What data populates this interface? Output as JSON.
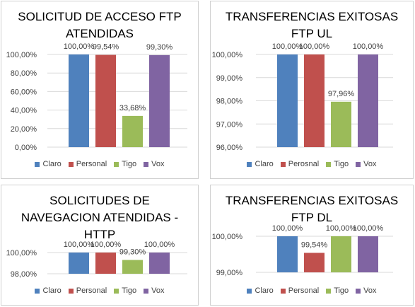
{
  "chart_data": [
    {
      "type": "bar",
      "title": "SOLICITUD DE ACCESO FTP\nATENDIDAS",
      "categories": [
        "Claro",
        "Personal",
        "Tigo",
        "Vox"
      ],
      "values": [
        100.0,
        99.54,
        33.68,
        99.3
      ],
      "value_labels": [
        "100,00%",
        "99,54%",
        "33,68%",
        "99,30%"
      ],
      "ylim": [
        0,
        100
      ],
      "yticks": [
        "0,00%",
        "20,00%",
        "40,00%",
        "60,00%",
        "80,00%",
        "100,00%"
      ],
      "colors": [
        "#4f81bd",
        "#c0504d",
        "#9bbb59",
        "#8064a2"
      ],
      "grid": true,
      "legend_position": "bottom"
    },
    {
      "type": "bar",
      "title": "TRANSFERENCIAS EXITOSAS\nFTP UL",
      "categories": [
        "Claro",
        "Perosnal",
        "Tigo",
        "Vox"
      ],
      "values": [
        100.0,
        100.0,
        97.96,
        100.0
      ],
      "value_labels": [
        "100,00%",
        "100,00%",
        "97,96%",
        "100,00%"
      ],
      "ylim": [
        96,
        100
      ],
      "yticks": [
        "96,00%",
        "97,00%",
        "98,00%",
        "99,00%",
        "100,00%"
      ],
      "colors": [
        "#4f81bd",
        "#c0504d",
        "#9bbb59",
        "#8064a2"
      ],
      "grid": true,
      "legend_position": "bottom"
    },
    {
      "type": "bar",
      "title": "SOLICITUDES DE\nNAVEGACION ATENDIDAS -\nHTTP",
      "categories": [
        "Claro",
        "Personal",
        "Tigo",
        "Vox"
      ],
      "values": [
        100.0,
        100.0,
        99.3,
        100.0
      ],
      "value_labels": [
        "100,00%",
        "100,00%",
        "99,30%",
        "100,00%"
      ],
      "ylim": [
        98,
        100
      ],
      "yticks": [
        "98,00%",
        "100,00%"
      ],
      "colors": [
        "#4f81bd",
        "#c0504d",
        "#9bbb59",
        "#8064a2"
      ],
      "grid": true,
      "legend_position": "bottom"
    },
    {
      "type": "bar",
      "title": "TRANSFERENCIAS EXITOSAS\nFTP DL",
      "categories": [
        "Claro",
        "Personal",
        "Tigo",
        "Vox"
      ],
      "values": [
        100.0,
        99.54,
        100.0,
        100.0
      ],
      "value_labels": [
        "100,00%",
        "99,54%",
        "100,00%",
        "100,00%"
      ],
      "ylim": [
        99,
        100
      ],
      "yticks": [
        "99,00%",
        "100,00%"
      ],
      "colors": [
        "#4f81bd",
        "#c0504d",
        "#9bbb59",
        "#8064a2"
      ],
      "grid": true,
      "legend_position": "bottom"
    }
  ]
}
